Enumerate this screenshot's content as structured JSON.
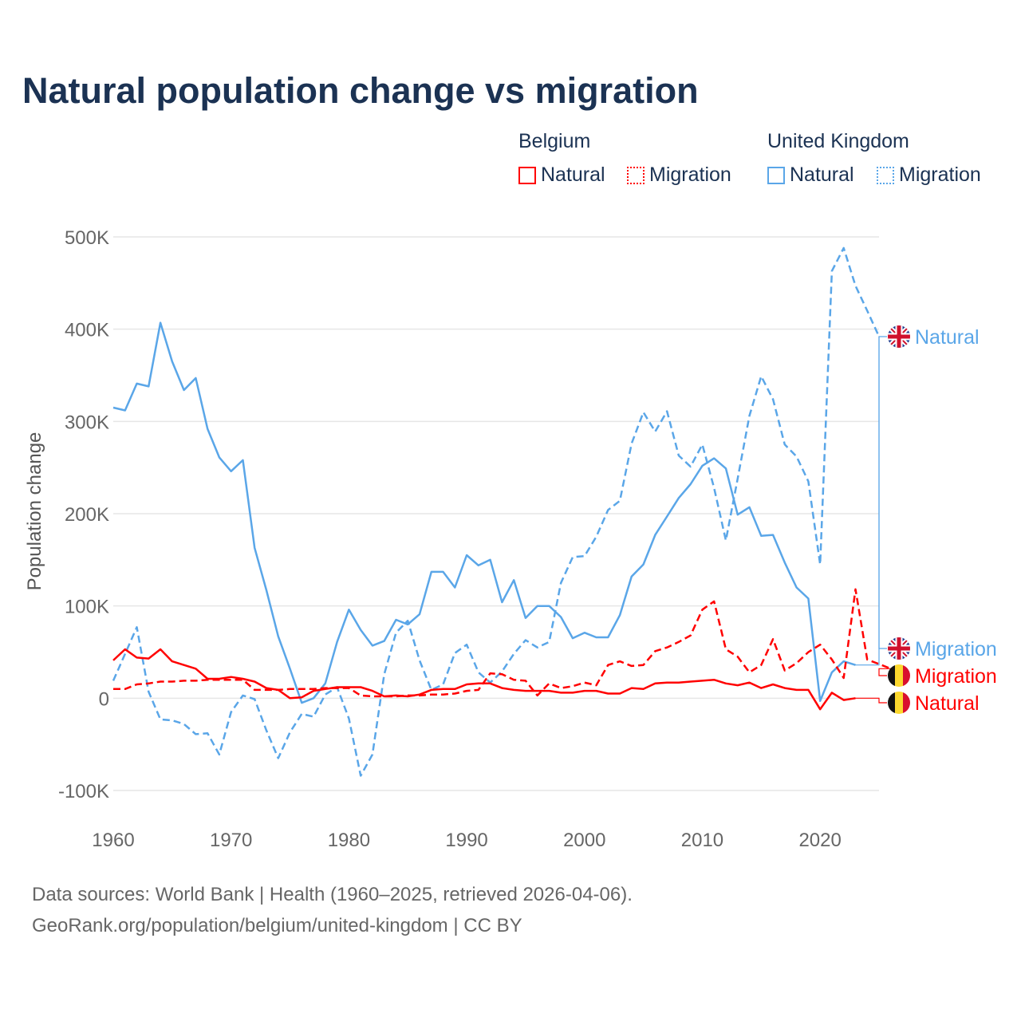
{
  "title": "Natural population change vs migration",
  "legend": {
    "groups": [
      {
        "name": "Belgium",
        "items": [
          {
            "label": "Natural",
            "style": "solid",
            "color": "#ff0000"
          },
          {
            "label": "Migration",
            "style": "dotted",
            "color": "#ff0000"
          }
        ]
      },
      {
        "name": "United Kingdom",
        "items": [
          {
            "label": "Natural",
            "style": "solid",
            "color": "#5aa6e8"
          },
          {
            "label": "Migration",
            "style": "dotted",
            "color": "#5aa6e8"
          }
        ]
      }
    ]
  },
  "footer": {
    "line1": "Data sources: World Bank | Health (1960–2025, retrieved 2026-04-06).",
    "line2": "GeoRank.org/population/belgium/united-kingdom | CC BY"
  },
  "chart_data": {
    "type": "line",
    "title": "Natural population change vs migration",
    "xlabel": "",
    "ylabel": "Population change",
    "xlim": [
      1960,
      2025
    ],
    "ylim": [
      -100000,
      500000
    ],
    "grid": true,
    "legend_position": "top-right",
    "x_ticks": [
      1960,
      1970,
      1980,
      1990,
      2000,
      2010,
      2020
    ],
    "x_tick_labels": [
      "1960",
      "1970",
      "1980",
      "1990",
      "2000",
      "2010",
      "2020"
    ],
    "y_ticks": [
      500000,
      400000,
      300000,
      200000,
      100000,
      0,
      -100000
    ],
    "y_tick_labels": [
      "500K",
      "400K",
      "300K",
      "200K",
      "100K",
      "0",
      "-100K"
    ],
    "series": [
      {
        "name": "United Kingdom Natural",
        "end_label": "Natural",
        "country": "uk",
        "color": "#5aa6e8",
        "dash": false,
        "start": 1960,
        "values": [
          315,
          312,
          341,
          338,
          407,
          365,
          334,
          347,
          292,
          261,
          246,
          258,
          163,
          117,
          67,
          32,
          -5,
          0,
          16,
          61,
          96,
          74,
          57,
          62,
          85,
          80,
          91,
          137,
          137,
          120,
          155,
          144,
          150,
          104,
          128,
          87,
          100,
          100,
          88,
          65,
          71,
          66,
          66,
          90,
          132,
          145,
          177,
          197,
          217,
          232,
          252,
          260,
          249,
          199,
          207,
          176,
          177,
          147,
          120,
          108,
          -3,
          28,
          40,
          36
        ]
      },
      {
        "name": "United Kingdom Migration",
        "end_label": "Migration",
        "country": "uk",
        "color": "#5aa6e8",
        "dash": true,
        "start": 1960,
        "values": [
          19,
          48,
          77,
          7,
          -23,
          -24,
          -28,
          -39,
          -38,
          -61,
          -15,
          3,
          -1,
          -35,
          -65,
          -37,
          -17,
          -20,
          4,
          12,
          -22,
          -84,
          -61,
          26,
          71,
          84,
          41,
          9,
          15,
          49,
          58,
          28,
          17,
          29,
          48,
          63,
          55,
          61,
          125,
          153,
          154,
          175,
          204,
          214,
          276,
          310,
          289,
          311,
          263,
          251,
          275,
          228,
          171,
          238,
          306,
          349,
          324,
          275,
          262,
          235,
          145,
          463,
          488,
          447,
          420,
          392
        ]
      },
      {
        "name": "Belgium Migration",
        "end_label": "Migration",
        "country": "be",
        "color": "#ff0000",
        "dash": true,
        "start": 1960,
        "values": [
          10,
          10,
          15,
          16,
          18,
          18,
          19,
          19,
          20,
          20,
          20,
          20,
          9,
          9,
          9,
          10,
          10,
          10,
          11,
          11,
          11,
          3,
          2,
          2,
          2,
          3,
          3,
          4,
          4,
          5,
          8,
          9,
          27,
          26,
          20,
          19,
          3,
          16,
          11,
          13,
          17,
          14,
          36,
          40,
          35,
          36,
          51,
          55,
          61,
          68,
          96,
          105,
          53,
          45,
          28,
          36,
          64,
          30,
          38,
          50,
          58,
          42,
          22,
          118,
          42,
          37,
          32
        ]
      },
      {
        "name": "Belgium Natural",
        "end_label": "Natural",
        "country": "be",
        "color": "#ff0000",
        "dash": false,
        "start": 1960,
        "values": [
          41,
          53,
          44,
          43,
          53,
          40,
          36,
          32,
          21,
          21,
          23,
          21,
          18,
          11,
          9,
          0,
          1,
          8,
          10,
          12,
          12,
          12,
          8,
          2,
          3,
          2,
          4,
          9,
          10,
          10,
          15,
          16,
          16,
          11,
          9,
          8,
          8,
          8,
          6,
          6,
          8,
          8,
          5,
          5,
          11,
          10,
          16,
          17,
          17,
          18,
          19,
          20,
          16,
          14,
          17,
          11,
          15,
          11,
          9,
          9,
          -12,
          6,
          -2,
          0
        ]
      }
    ],
    "value_unit": "thousands"
  }
}
